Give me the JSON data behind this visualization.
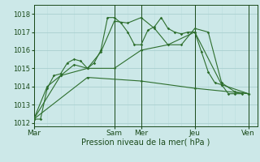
{
  "background_color": "#cce8e8",
  "grid_color_major": "#aad0d0",
  "grid_color_minor": "#bbdede",
  "line_color": "#2d6e2d",
  "line_color_dark": "#1a4a1a",
  "title": "Pression niveau de la mer( hPa )",
  "ylabel_ticks": [
    1012,
    1013,
    1014,
    1015,
    1016,
    1017,
    1018
  ],
  "xlim": [
    0,
    100
  ],
  "ylim": [
    1011.8,
    1018.5
  ],
  "x_major_ticks": [
    0,
    36,
    48,
    72,
    96
  ],
  "x_major_labels": [
    "Mar",
    "Sam",
    "Mer",
    "Jeu",
    "Ven"
  ],
  "x_vline_ticks": [
    0,
    36,
    48,
    72,
    96
  ],
  "series1_x": [
    0,
    3,
    6,
    9,
    12,
    15,
    18,
    21,
    24,
    27,
    30,
    33,
    36,
    39,
    42,
    45,
    48,
    51,
    54,
    57,
    60,
    63,
    66,
    69,
    72,
    75,
    78,
    81,
    84,
    87,
    90,
    93
  ],
  "series1_y": [
    1012.2,
    1012.2,
    1013.9,
    1014.6,
    1014.7,
    1015.3,
    1015.5,
    1015.4,
    1015.0,
    1015.3,
    1016.0,
    1017.8,
    1017.8,
    1017.5,
    1017.0,
    1016.3,
    1016.3,
    1017.1,
    1017.3,
    1017.8,
    1017.2,
    1017.0,
    1016.9,
    1017.0,
    1017.0,
    1015.9,
    1014.8,
    1014.2,
    1014.1,
    1013.6,
    1013.6,
    1013.6
  ],
  "series2_x": [
    0,
    6,
    12,
    18,
    24,
    30,
    36,
    42,
    48,
    54,
    60,
    66,
    72,
    78,
    84,
    90,
    96
  ],
  "series2_y": [
    1012.2,
    1014.0,
    1014.6,
    1015.2,
    1015.0,
    1015.9,
    1017.6,
    1017.5,
    1017.8,
    1017.2,
    1016.3,
    1016.3,
    1017.2,
    1017.0,
    1014.2,
    1013.7,
    1013.6
  ],
  "series3_x": [
    0,
    12,
    24,
    36,
    48,
    60,
    72,
    84,
    96
  ],
  "series3_y": [
    1012.2,
    1014.6,
    1015.0,
    1015.0,
    1016.0,
    1016.3,
    1017.0,
    1014.1,
    1013.6
  ],
  "series4_x": [
    0,
    24,
    48,
    72,
    96
  ],
  "series4_y": [
    1012.2,
    1014.5,
    1014.3,
    1013.9,
    1013.6
  ]
}
